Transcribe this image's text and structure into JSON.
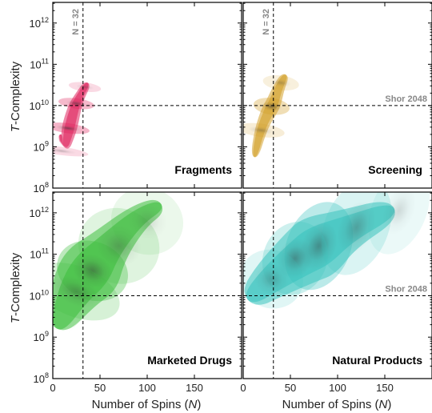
{
  "figure": {
    "y_axis_label_italic": "T",
    "y_axis_label_rest": "-Complexity",
    "x_axis_label_main": "Number of Spins (",
    "x_axis_label_italic": "N",
    "x_axis_label_end": ")",
    "spin_ref_label": "N = 32",
    "shor_label": "Shor 2048"
  },
  "chart_data": [
    {
      "type": "area",
      "name": "fragments",
      "title": "Fragments",
      "color": "#e0245e",
      "xlim": [
        0,
        200
      ],
      "ylim_log10": [
        8,
        12.5
      ],
      "y_scale": "log",
      "x_ticks": [],
      "y_ticks_exp": [
        8,
        9,
        10,
        11,
        12
      ],
      "ref_x": 32,
      "ref_y_log10": 10,
      "show_shor": false,
      "density_ridge": [
        [
          8,
          9.3,
          0.25
        ],
        [
          12,
          8.9,
          0.6
        ],
        [
          17,
          9.4,
          1.0
        ],
        [
          23,
          9.95,
          0.8
        ],
        [
          28,
          10.2,
          0.5
        ],
        [
          37,
          10.55,
          0.25
        ]
      ],
      "blobs": [
        [
          16,
          9.45,
          2.4,
          0.24,
          1.0
        ],
        [
          25,
          10.05,
          2.5,
          0.2,
          0.9
        ],
        [
          34,
          10.45,
          2.2,
          0.18,
          0.5
        ],
        [
          9,
          8.9,
          2.0,
          0.3,
          0.5
        ]
      ]
    },
    {
      "type": "area",
      "name": "screening",
      "title": "Screening",
      "color": "#d4a12a",
      "xlim": [
        0,
        200
      ],
      "ylim_log10": [
        8,
        12.5
      ],
      "y_scale": "log",
      "x_ticks": [],
      "y_ticks_exp": [],
      "ref_x": 32,
      "ref_y_log10": 10,
      "show_shor": true,
      "density_ridge": [
        [
          12,
          8.75,
          0.3
        ],
        [
          18,
          9.4,
          0.6
        ],
        [
          28,
          9.9,
          1.0
        ],
        [
          32,
          10.05,
          0.95
        ],
        [
          38,
          10.45,
          0.6
        ],
        [
          45,
          10.75,
          0.3
        ]
      ],
      "blobs": [
        [
          30,
          9.98,
          4,
          0.2,
          1.0
        ],
        [
          19,
          9.4,
          3.2,
          0.26,
          0.55
        ],
        [
          40,
          10.55,
          3.5,
          0.2,
          0.45
        ]
      ]
    },
    {
      "type": "area",
      "name": "marketed-drugs",
      "title": "Marketed Drugs",
      "color": "#3fbf3f",
      "xlim": [
        0,
        200
      ],
      "ylim_log10": [
        8,
        12.5
      ],
      "y_scale": "log",
      "x_ticks": [
        0,
        50,
        100,
        150
      ],
      "y_ticks_exp": [
        8,
        9,
        10,
        11,
        12
      ],
      "ref_x": 32,
      "ref_y_log10": 10,
      "show_shor": false,
      "density_ridge": [
        [
          5,
          9.2,
          0.3
        ],
        [
          20,
          10.0,
          0.7
        ],
        [
          40,
          10.6,
          1.0
        ],
        [
          60,
          11.2,
          0.6
        ],
        [
          90,
          11.9,
          0.35
        ],
        [
          115,
          12.2,
          0.2
        ]
      ],
      "blobs": [
        [
          42,
          10.6,
          14,
          0.4,
          1.0
        ],
        [
          25,
          10.1,
          12,
          0.5,
          0.6
        ],
        [
          70,
          11.2,
          18,
          0.45,
          0.5
        ],
        [
          100,
          11.8,
          16,
          0.4,
          0.3
        ]
      ]
    },
    {
      "type": "area",
      "name": "natural-products",
      "title": "Natural Products",
      "color": "#3cc4bf",
      "xlim": [
        0,
        200
      ],
      "ylim_log10": [
        8,
        12.5
      ],
      "y_scale": "log",
      "x_ticks": [
        0,
        50,
        100,
        150
      ],
      "y_ticks_exp": [],
      "ref_x": 32,
      "ref_y_log10": 10,
      "show_shor": true,
      "density_ridge": [
        [
          5,
          9.9,
          0.3
        ],
        [
          30,
          10.4,
          0.6
        ],
        [
          60,
          10.9,
          0.85
        ],
        [
          80,
          11.2,
          1.0
        ],
        [
          110,
          11.6,
          0.6
        ],
        [
          160,
          12.1,
          0.3
        ]
      ],
      "blobs": [
        [
          80,
          11.2,
          22,
          0.35,
          1.0
        ],
        [
          55,
          10.9,
          18,
          0.35,
          0.75
        ],
        [
          120,
          11.65,
          24,
          0.35,
          0.55
        ],
        [
          30,
          10.4,
          14,
          0.35,
          0.45
        ],
        [
          165,
          12.05,
          22,
          0.3,
          0.3
        ]
      ]
    }
  ]
}
